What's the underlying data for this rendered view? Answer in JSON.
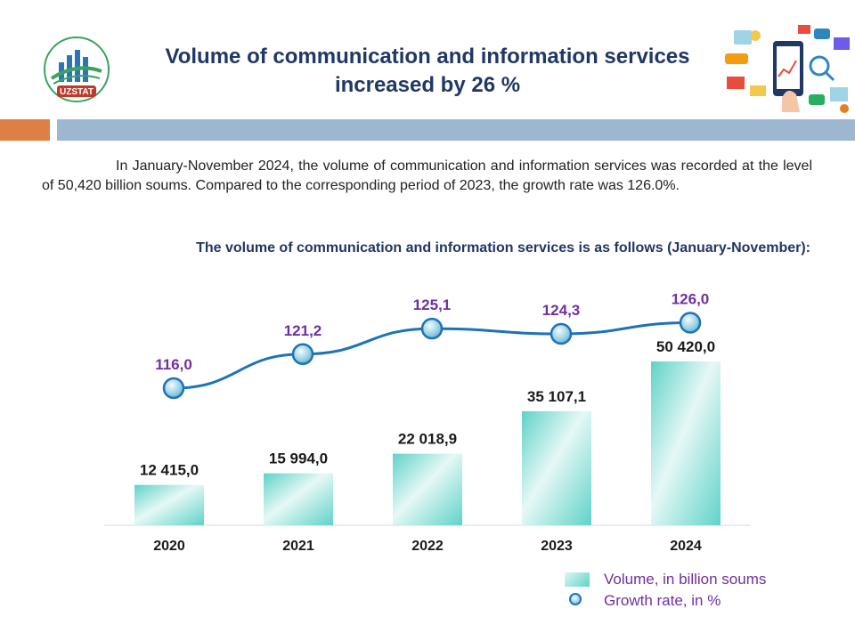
{
  "header": {
    "title": "Volume of communication and information services increased by 26 %",
    "logo_text": "UZSTAT"
  },
  "intro_text": "In January-November 2024, the volume of communication and information services was recorded at the level of 50,420 billion soums. Compared to the corresponding period of 2023, the growth rate was 126.0%.",
  "chart_subtitle": "The volume of communication and information services is as follows (January-November):",
  "colors": {
    "title": "#1f3864",
    "band_orange": "#dd8047",
    "band_blue": "#9eb7d0",
    "bar": "#5fd3c8",
    "line": "#1e73b8",
    "growth_label": "#7030a0"
  },
  "chart_data": {
    "type": "bar",
    "categories": [
      "2020",
      "2021",
      "2022",
      "2023",
      "2024"
    ],
    "series": [
      {
        "name": "Volume, in billion soums",
        "type": "bar",
        "values": [
          12415.0,
          15994.0,
          22018.9,
          35107.1,
          50420.0
        ],
        "labels": [
          "12 415,0",
          "15 994,0",
          "22 018,9",
          "35 107,1",
          "50 420,0"
        ]
      },
      {
        "name": "Growth rate, in %",
        "type": "line",
        "values": [
          116.0,
          121.2,
          125.1,
          124.3,
          126.0
        ],
        "labels": [
          "116,0",
          "121,2",
          "125,1",
          "124,3",
          "126,0"
        ]
      }
    ],
    "legend": {
      "position": "bottom-right",
      "items": [
        "Volume, in billion soums",
        "Growth rate, in %"
      ]
    }
  }
}
